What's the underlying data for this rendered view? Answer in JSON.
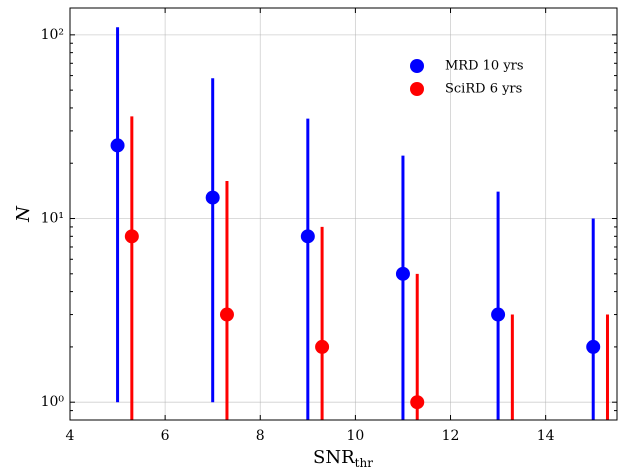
{
  "chart_data": {
    "type": "errorbar",
    "xlabel": "SNR",
    "xlabel_sub": "thr",
    "ylabel": "N",
    "xlim": [
      4,
      15.5
    ],
    "xticks": [
      4,
      6,
      8,
      10,
      12,
      14
    ],
    "ylim": [
      0.8,
      140
    ],
    "log_y": true,
    "yticks": [
      {
        "value": 1,
        "label": "10⁰"
      },
      {
        "value": 10,
        "label": "10¹"
      },
      {
        "value": 100,
        "label": "10²"
      }
    ],
    "yminorticks": [
      0.9,
      2,
      3,
      4,
      5,
      6,
      7,
      8,
      9,
      20,
      30,
      40,
      50,
      60,
      70,
      80,
      90
    ],
    "grid": true,
    "legend": "upper right",
    "series": [
      {
        "name": "MRD 10 yrs",
        "color": "#0000ff",
        "x": [
          5,
          7,
          9,
          11,
          13,
          15
        ],
        "values": [
          25,
          13,
          8,
          5,
          3,
          2
        ],
        "lower": [
          1,
          1,
          0,
          0,
          0,
          0
        ],
        "upper": [
          110,
          58,
          35,
          22,
          14,
          10
        ]
      },
      {
        "name": "SciRD 6 yrs",
        "color": "#ff0000",
        "x": [
          5.3,
          7.3,
          9.3,
          11.3,
          13.3,
          15.3
        ],
        "values": [
          8,
          3,
          2,
          1,
          null,
          null
        ],
        "lower": [
          0,
          0,
          0,
          0,
          0,
          0
        ],
        "upper": [
          36,
          16,
          9,
          5,
          3,
          3
        ]
      }
    ]
  }
}
